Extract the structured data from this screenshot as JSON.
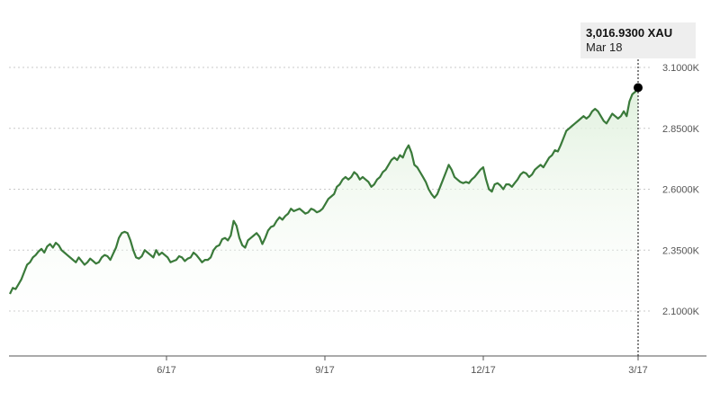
{
  "chart_data": {
    "type": "area",
    "title": "",
    "xlabel": "",
    "ylabel": "",
    "x_ticks": [
      "6/17",
      "9/17",
      "12/17",
      "3/17"
    ],
    "y_ticks": [
      "2.1000K",
      "2.3500K",
      "2.6000K",
      "2.8500K",
      "3.1000K"
    ],
    "y_tick_values": [
      2100,
      2350,
      2600,
      2850,
      3100
    ],
    "ylim": [
      1925,
      3175
    ],
    "grid": "horizontal dashed",
    "legend": "none",
    "series": [
      {
        "values": [
          2170,
          2195,
          2190,
          2210,
          2230,
          2260,
          2290,
          2300,
          2320,
          2330,
          2345,
          2355,
          2340,
          2365,
          2375,
          2360,
          2380,
          2370,
          2350,
          2340,
          2330,
          2320,
          2310,
          2300,
          2320,
          2305,
          2290,
          2300,
          2315,
          2305,
          2295,
          2300,
          2320,
          2330,
          2325,
          2310,
          2335,
          2360,
          2400,
          2420,
          2425,
          2420,
          2390,
          2350,
          2320,
          2315,
          2325,
          2350,
          2340,
          2330,
          2320,
          2350,
          2330,
          2340,
          2330,
          2320,
          2300,
          2305,
          2310,
          2325,
          2320,
          2305,
          2315,
          2320,
          2340,
          2330,
          2315,
          2300,
          2310,
          2310,
          2320,
          2350,
          2365,
          2370,
          2395,
          2400,
          2390,
          2410,
          2470,
          2450,
          2400,
          2370,
          2360,
          2390,
          2400,
          2410,
          2420,
          2405,
          2375,
          2400,
          2430,
          2445,
          2450,
          2470,
          2485,
          2475,
          2490,
          2500,
          2520,
          2510,
          2515,
          2520,
          2510,
          2500,
          2505,
          2520,
          2515,
          2505,
          2510,
          2520,
          2540,
          2560,
          2570,
          2580,
          2610,
          2620,
          2640,
          2650,
          2640,
          2650,
          2670,
          2660,
          2640,
          2650,
          2640,
          2630,
          2610,
          2620,
          2640,
          2650,
          2670,
          2680,
          2700,
          2720,
          2730,
          2720,
          2740,
          2730,
          2760,
          2780,
          2750,
          2700,
          2690,
          2670,
          2650,
          2630,
          2600,
          2580,
          2565,
          2580,
          2610,
          2640,
          2670,
          2700,
          2680,
          2650,
          2640,
          2630,
          2625,
          2630,
          2625,
          2640,
          2650,
          2665,
          2680,
          2690,
          2640,
          2600,
          2590,
          2620,
          2625,
          2615,
          2600,
          2620,
          2620,
          2610,
          2625,
          2640,
          2660,
          2670,
          2665,
          2650,
          2660,
          2680,
          2690,
          2700,
          2690,
          2710,
          2730,
          2740,
          2760,
          2755,
          2780,
          2810,
          2840,
          2850,
          2860,
          2870,
          2880,
          2890,
          2900,
          2890,
          2900,
          2920,
          2930,
          2920,
          2900,
          2880,
          2870,
          2890,
          2910,
          2900,
          2890,
          2900,
          2920,
          2900,
          2960,
          2990,
          3000,
          3016.93
        ]
      }
    ],
    "line_color": "#3a7a3a",
    "fill_color": "#e6f4e4",
    "grid_color": "#c8c8c8",
    "tooltip": {
      "value": "3,016.9300 XAU",
      "date": "Mar 18"
    }
  }
}
